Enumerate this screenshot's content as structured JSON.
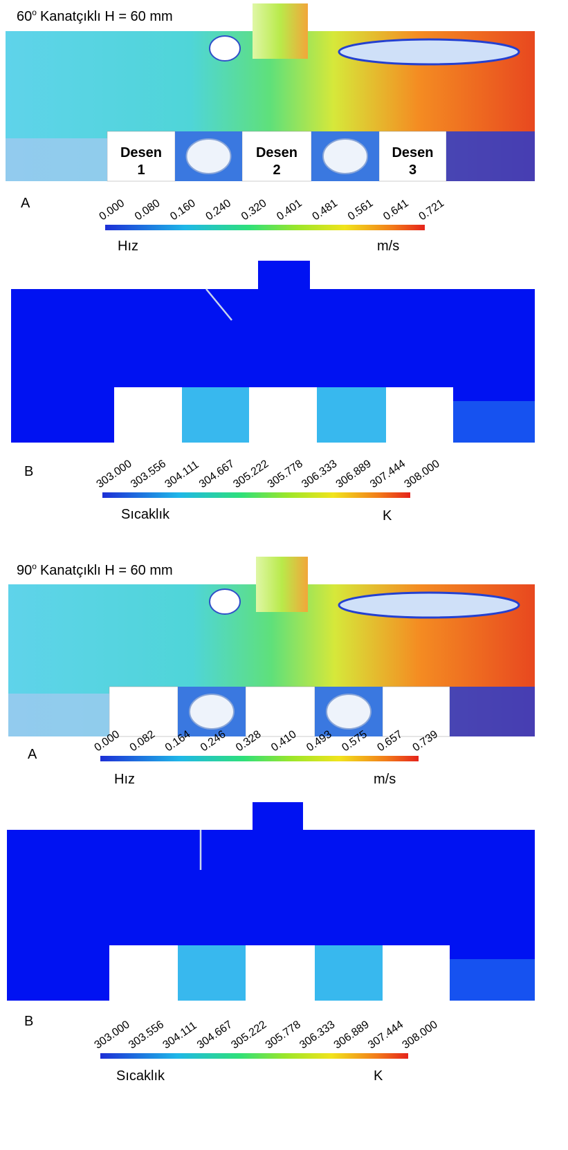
{
  "panels": [
    {
      "angle": "60",
      "degree_mark": "o",
      "title": "Kanatçıklı H = 60 mm",
      "velocity": {
        "label": "A",
        "ticks": [
          "0.000",
          "0.080",
          "0.160",
          "0.240",
          "0.320",
          "0.401",
          "0.481",
          "0.561",
          "0.641",
          "0.721"
        ],
        "quantity": "Hız",
        "unit": "m/s"
      },
      "patterns": [
        {
          "name": "Desen",
          "number": "1"
        },
        {
          "name": "Desen",
          "number": "2"
        },
        {
          "name": "Desen",
          "number": "3"
        }
      ],
      "temperature": {
        "label": "B",
        "ticks": [
          "303.000",
          "303.556",
          "304.111",
          "304.667",
          "305.222",
          "305.778",
          "306.333",
          "306.889",
          "307.444",
          "308.000"
        ],
        "quantity": "Sıcaklık",
        "unit": "K"
      }
    },
    {
      "angle": "90",
      "degree_mark": "o",
      "title": "Kanatçıklı H = 60 mm",
      "velocity": {
        "label": "A",
        "ticks": [
          "0.000",
          "0.082",
          "0.164",
          "0.246",
          "0.328",
          "0.410",
          "0.493",
          "0.575",
          "0.657",
          "0.739"
        ],
        "quantity": "Hız",
        "unit": "m/s"
      },
      "temperature": {
        "label": "B",
        "ticks": [
          "303.000",
          "303.556",
          "304.111",
          "304.667",
          "305.222",
          "305.778",
          "306.333",
          "306.889",
          "307.444",
          "308.000"
        ],
        "quantity": "Sıcaklık",
        "unit": "K"
      }
    }
  ]
}
